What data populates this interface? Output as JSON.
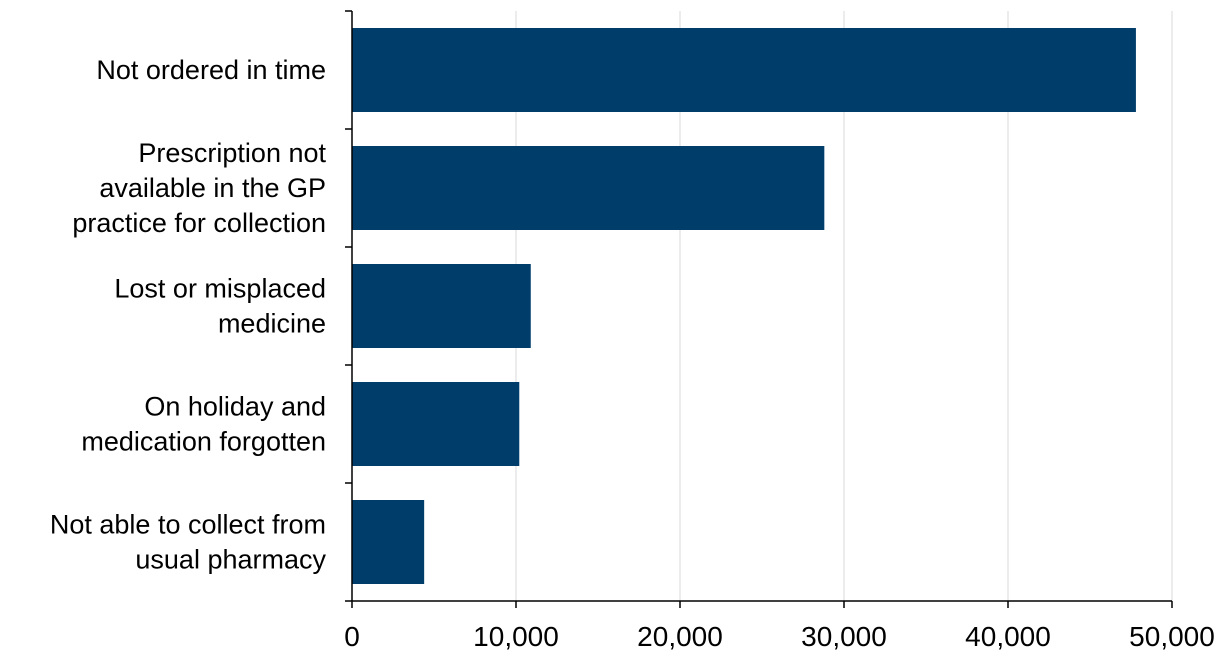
{
  "chart_data": {
    "type": "bar",
    "orientation": "horizontal",
    "categories": [
      [
        "Not ordered in time"
      ],
      [
        "Prescription not",
        "available in the GP",
        "practice for collection"
      ],
      [
        "Lost or misplaced",
        "medicine"
      ],
      [
        "On holiday and",
        "medication forgotten"
      ],
      [
        "Not able to collect from",
        "usual pharmacy"
      ]
    ],
    "values": [
      47800,
      28800,
      10900,
      10200,
      4400
    ],
    "xlim": [
      0,
      50000
    ],
    "x_ticks": [
      0,
      10000,
      20000,
      30000,
      40000,
      50000
    ],
    "x_tick_labels": [
      "0",
      "10,000",
      "20,000",
      "30,000",
      "40,000",
      "50,000"
    ],
    "title": "",
    "xlabel": "",
    "ylabel": "",
    "grid": "vertical",
    "legend": "none",
    "bar_color": "#003D6B",
    "grid_color": "#D9D9D9",
    "axis_color": "#000000"
  }
}
